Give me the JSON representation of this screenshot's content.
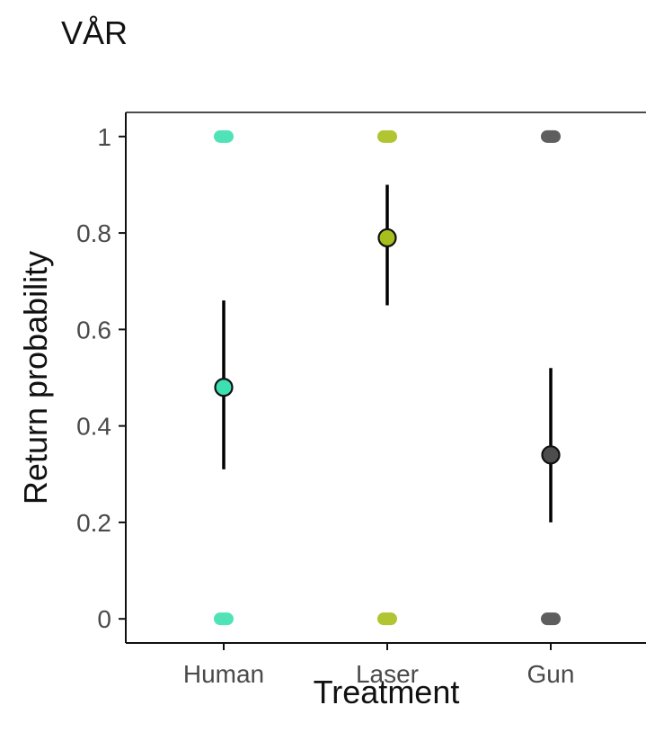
{
  "page_label": "VÅR",
  "chart_data": {
    "type": "scatter",
    "xlabel": "Treatment",
    "ylabel": "Return probability",
    "categories": [
      "Human",
      "Laser",
      "Gun"
    ],
    "ylim": [
      -0.05,
      1.05
    ],
    "yticks": [
      "0",
      "0.2",
      "0.4",
      "0.6",
      "0.8",
      "1"
    ],
    "ytick_values": [
      0,
      0.2,
      0.4,
      0.6,
      0.8,
      1
    ],
    "grid": false,
    "legend": "none",
    "series": [
      {
        "category": "Human",
        "estimate": 0.48,
        "lower": 0.31,
        "upper": 0.66,
        "color": "#3de0b0",
        "raw_values": [
          0,
          1
        ]
      },
      {
        "category": "Laser",
        "estimate": 0.79,
        "lower": 0.65,
        "upper": 0.9,
        "color": "#a8be1c",
        "raw_values": [
          0,
          1
        ]
      },
      {
        "category": "Gun",
        "estimate": 0.34,
        "lower": 0.2,
        "upper": 0.52,
        "color": "#4d4d4d",
        "raw_values": [
          0,
          1
        ]
      }
    ]
  }
}
